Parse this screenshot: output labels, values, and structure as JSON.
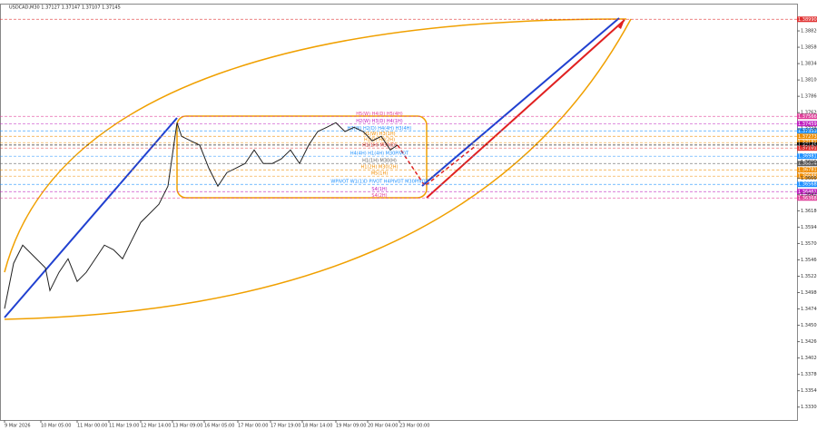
{
  "chart_data": {
    "type": "line",
    "title": "USDCAD,M30  1.37127 1.37147 1.37107 1.37145",
    "xlim": [
      0,
      87.5
    ],
    "ylim": [
      1.3311,
      1.3922
    ],
    "xticks": [
      {
        "value": 0,
        "label": "9 Mar 2026"
      },
      {
        "value": 4,
        "label": "10 Mar 05:00"
      },
      {
        "value": 8,
        "label": "11 Mar 00:00"
      },
      {
        "value": 11.5,
        "label": "11 Mar 19:00"
      },
      {
        "value": 15,
        "label": "12 Mar 14:00"
      },
      {
        "value": 18.5,
        "label": "13 Mar 09:00"
      },
      {
        "value": 22,
        "label": "16 Mar 05:00"
      },
      {
        "value": 25.7,
        "label": "17 Mar 00:00"
      },
      {
        "value": 29.3,
        "label": "17 Mar 19:00"
      },
      {
        "value": 32.8,
        "label": "18 Mar 14:00"
      },
      {
        "value": 36.5,
        "label": "19 Mar 09:00"
      },
      {
        "value": 40,
        "label": "20 Mar 04:00"
      },
      {
        "value": 43.5,
        "label": "23 Mar 00:00"
      }
    ],
    "yticks": [
      {
        "value": 1.333,
        "label": "1.33300"
      },
      {
        "value": 1.3354,
        "label": "1.33540"
      },
      {
        "value": 1.3378,
        "label": "1.33780"
      },
      {
        "value": 1.3402,
        "label": "1.34020"
      },
      {
        "value": 1.3426,
        "label": "1.34260"
      },
      {
        "value": 1.345,
        "label": "1.34500"
      },
      {
        "value": 1.3474,
        "label": "1.34740"
      },
      {
        "value": 1.3498,
        "label": "1.34980"
      },
      {
        "value": 1.3522,
        "label": "1.35220"
      },
      {
        "value": 1.3546,
        "label": "1.35460"
      },
      {
        "value": 1.357,
        "label": "1.35700"
      },
      {
        "value": 1.3594,
        "label": "1.35940"
      },
      {
        "value": 1.3618,
        "label": "1.36180"
      },
      {
        "value": 1.3642,
        "label": "1.36420"
      },
      {
        "value": 1.3666,
        "label": "1.36660"
      },
      {
        "value": 1.369,
        "label": "1.36900"
      },
      {
        "value": 1.3714,
        "label": "1.37140"
      },
      {
        "value": 1.3738,
        "label": "1.37380"
      },
      {
        "value": 1.3762,
        "label": "1.37620"
      },
      {
        "value": 1.3786,
        "label": "1.37860"
      },
      {
        "value": 1.381,
        "label": "1.38100"
      },
      {
        "value": 1.3834,
        "label": "1.38340"
      },
      {
        "value": 1.3858,
        "label": "1.38580"
      },
      {
        "value": 1.3882,
        "label": "1.38820"
      }
    ],
    "series": [
      {
        "color": "#222222",
        "x": [
          0,
          1,
          2,
          3.5,
          4.5,
          5,
          6,
          7,
          8,
          9,
          10,
          11,
          12,
          13,
          14,
          15,
          16,
          17,
          18,
          18.5,
          19,
          19.5,
          20.5,
          21.5,
          22.5,
          23.5,
          24.5,
          25.5,
          26.5,
          27.5,
          28.5,
          29.5,
          30.5,
          31.5,
          32.5,
          33.5,
          34.5,
          35.5,
          36.5,
          37.5,
          38.5,
          39.5,
          40.5,
          41.5,
          42.5,
          43.3
        ],
        "values": [
          1.34744,
          1.3541,
          1.35676,
          1.35476,
          1.35343,
          1.35011,
          1.35277,
          1.35476,
          1.35144,
          1.35277,
          1.35476,
          1.35676,
          1.35609,
          1.35476,
          1.35743,
          1.36009,
          1.36142,
          1.36275,
          1.36541,
          1.37007,
          1.37473,
          1.37273,
          1.37207,
          1.37143,
          1.36807,
          1.36541,
          1.36741,
          1.36807,
          1.36874,
          1.37073,
          1.36874,
          1.36874,
          1.36943,
          1.37073,
          1.36874,
          1.37143,
          1.37343,
          1.37406,
          1.37473,
          1.37343,
          1.37406,
          1.37343,
          1.37207,
          1.37273,
          1.37073,
          1.37145
        ]
      }
    ],
    "levels": [
      {
        "value": 1.3899,
        "label": "1.38990",
        "color": "#e03030",
        "text": null
      },
      {
        "value": 1.37566,
        "label": "1.37566",
        "color": "#e0409a",
        "text": "H5(W) H4(D) H5(4H)"
      },
      {
        "value": 1.37459,
        "label": "1.37459",
        "color": "#c020c0",
        "text": "H2(W) H3(D) H4(1H)"
      },
      {
        "value": 1.37353,
        "label": "1.37353",
        "color": "#1e90ff",
        "text": "H3(W) H2(D) H4(4H) H3(4H)"
      },
      {
        "value": 1.37273,
        "label": "1.37273",
        "color": "#f08c00",
        "text": "H1(W) H3(1H)"
      },
      {
        "value": 1.37181,
        "label": "1.37181",
        "color": "#f08c00",
        "text": "H1(D) H4(2H)"
      },
      {
        "value": 1.37145,
        "label": "1.37145",
        "color": "#000000",
        "text": null
      },
      {
        "value": 1.37101,
        "label": "1.37101",
        "color": "#e03030",
        "text": "H1(1H) M30(D)"
      },
      {
        "value": 1.36981,
        "label": "1.36981",
        "color": "#1e90ff",
        "text": "H4(4H) H1(4H) M30PIVOT"
      },
      {
        "value": 1.36874,
        "label": "1.36874",
        "color": "#606060",
        "text": "H1(1H) M30(H)"
      },
      {
        "value": 1.36781,
        "label": "1.36781",
        "color": "#f08c00",
        "text": "H1(2H) M30(2H)"
      },
      {
        "value": 1.36688,
        "label": "1.36688",
        "color": "#f08c00",
        "text": "M5(1H)"
      },
      {
        "value": 1.36568,
        "label": "1.36568",
        "color": "#1e90ff",
        "text": "WPIVOT W1(1)D PIVOT H4PIVOT M30PIVOT"
      },
      {
        "value": 1.36461,
        "label": "1.36461",
        "color": "#c020c0",
        "text": "S4(1H)"
      },
      {
        "value": 1.36368,
        "label": "1.36368",
        "color": "#e0409a",
        "text": "S4(2H)"
      }
    ]
  }
}
